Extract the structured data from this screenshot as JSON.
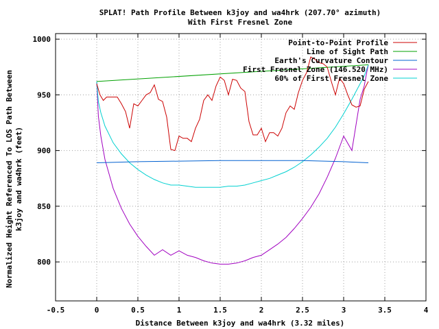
{
  "chart_data": {
    "type": "line",
    "title": "SPLAT! Path Profile Between k3joy and wa4hrk (207.70° azimuth)",
    "subtitle": "With First Fresnel Zone",
    "xlabel": "Distance Between k3joy and wa4hrk (3.32 miles)",
    "ylabel_line1": "Normalized Height Referenced To LOS Path Between",
    "ylabel_line2": "k3joy and wa4hrk (feet)",
    "xlim": [
      -0.5,
      4
    ],
    "ylim": [
      765,
      1005
    ],
    "grid": true,
    "legend_position": "top-right",
    "x_ticks": [
      -0.5,
      0,
      0.5,
      1,
      1.5,
      2,
      2.5,
      3,
      3.5,
      4
    ],
    "x_tick_labels": [
      "-0.5",
      "0",
      "0.5",
      "1",
      "1.5",
      "2",
      "2.5",
      "3",
      "3.5",
      "4"
    ],
    "y_ticks": [
      800,
      850,
      900,
      950,
      1000
    ],
    "y_tick_labels": [
      "800",
      "850",
      "900",
      "950",
      "1000"
    ],
    "series": [
      {
        "name": "Point-to-Point Profile",
        "color": "#cc0000",
        "x": [
          0,
          0.04,
          0.08,
          0.12,
          0.16,
          0.2,
          0.25,
          0.3,
          0.35,
          0.4,
          0.45,
          0.5,
          0.55,
          0.6,
          0.65,
          0.7,
          0.75,
          0.8,
          0.85,
          0.9,
          0.95,
          1.0,
          1.05,
          1.1,
          1.15,
          1.2,
          1.25,
          1.3,
          1.35,
          1.4,
          1.45,
          1.5,
          1.55,
          1.6,
          1.65,
          1.7,
          1.75,
          1.8,
          1.85,
          1.9,
          1.95,
          2.0,
          2.05,
          2.1,
          2.15,
          2.2,
          2.25,
          2.3,
          2.35,
          2.4,
          2.45,
          2.5,
          2.55,
          2.6,
          2.65,
          2.7,
          2.75,
          2.8,
          2.85,
          2.9,
          2.95,
          3.0,
          3.05,
          3.1,
          3.15,
          3.2,
          3.25,
          3.3
        ],
        "y": [
          960,
          950,
          945,
          948,
          948,
          948,
          948,
          942,
          935,
          920,
          942,
          940,
          945,
          950,
          952,
          959,
          946,
          944,
          930,
          901,
          900,
          913,
          911,
          911,
          908,
          920,
          928,
          945,
          950,
          945,
          958,
          966,
          963,
          950,
          964,
          963,
          956,
          953,
          926,
          914,
          914,
          920,
          908,
          916,
          916,
          913,
          920,
          934,
          940,
          937,
          952,
          963,
          970,
          984,
          982,
          979,
          978,
          975,
          962,
          950,
          965,
          960,
          950,
          941,
          939,
          940,
          955,
          962
        ]
      },
      {
        "name": "Line of Sight Path",
        "color": "#00a000",
        "x": [
          0,
          3.3
        ],
        "y": [
          962,
          977
        ]
      },
      {
        "name": "Earth's Curvature Contour",
        "color": "#0060d0",
        "x": [
          0,
          0.5,
          1.0,
          1.5,
          2.0,
          2.5,
          3.0,
          3.3
        ],
        "y": [
          889,
          890,
          890.5,
          891,
          891,
          891,
          890,
          889
        ]
      },
      {
        "name": "First Fresnel Zone (146.520 MHz)",
        "color": "#a000c0",
        "x": [
          0,
          0.02,
          0.05,
          0.1,
          0.2,
          0.3,
          0.4,
          0.5,
          0.6,
          0.7,
          0.8,
          0.9,
          1.0,
          1.1,
          1.2,
          1.3,
          1.4,
          1.5,
          1.6,
          1.7,
          1.8,
          1.9,
          2.0,
          2.1,
          2.2,
          2.3,
          2.4,
          2.5,
          2.6,
          2.7,
          2.8,
          2.9,
          3.0,
          3.1,
          3.2,
          3.25,
          3.28,
          3.3
        ],
        "y": [
          962,
          931,
          913,
          892,
          866,
          848,
          834,
          823,
          814,
          806,
          811,
          806,
          810,
          806,
          804,
          801,
          799,
          798,
          798,
          799,
          801,
          804,
          806,
          811,
          816,
          822,
          830,
          839,
          849,
          861,
          876,
          893,
          913,
          900,
          946,
          958,
          970,
          977
        ]
      },
      {
        "name": "60% of First Fresnel Zone",
        "color": "#00d0d0",
        "x": [
          0,
          0.02,
          0.05,
          0.1,
          0.2,
          0.3,
          0.4,
          0.5,
          0.6,
          0.7,
          0.8,
          0.9,
          1.0,
          1.1,
          1.2,
          1.3,
          1.4,
          1.5,
          1.6,
          1.7,
          1.8,
          1.9,
          2.0,
          2.1,
          2.2,
          2.3,
          2.4,
          2.5,
          2.6,
          2.7,
          2.8,
          2.9,
          3.0,
          3.1,
          3.2,
          3.25,
          3.28,
          3.3
        ],
        "y": [
          962,
          944,
          934,
          922,
          907,
          897,
          889,
          883,
          878,
          874,
          871,
          869,
          869,
          868,
          867,
          867,
          867,
          867,
          868,
          868,
          869,
          871,
          873,
          875,
          878,
          881,
          885,
          890,
          896,
          903,
          911,
          921,
          933,
          946,
          960,
          967,
          973,
          977
        ]
      }
    ]
  }
}
